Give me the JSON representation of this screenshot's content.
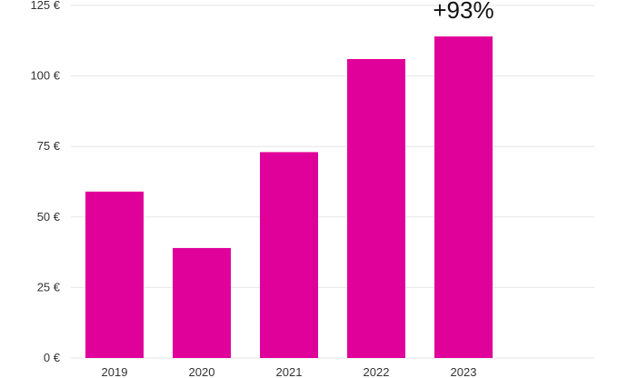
{
  "chart_data": {
    "type": "bar",
    "categories": [
      "2019",
      "2020",
      "2021",
      "2022",
      "2023"
    ],
    "values": [
      59,
      39,
      73,
      106,
      114
    ],
    "ylim": [
      0,
      125
    ],
    "yticks": [
      0,
      25,
      50,
      75,
      100,
      125
    ],
    "ytick_labels": [
      "0 €",
      "25 €",
      "50 €",
      "75 €",
      "100 €",
      "125 €"
    ],
    "annotation": {
      "text": "+93%",
      "category": "2023"
    },
    "grid": true,
    "bar_color": "#e0009a"
  }
}
